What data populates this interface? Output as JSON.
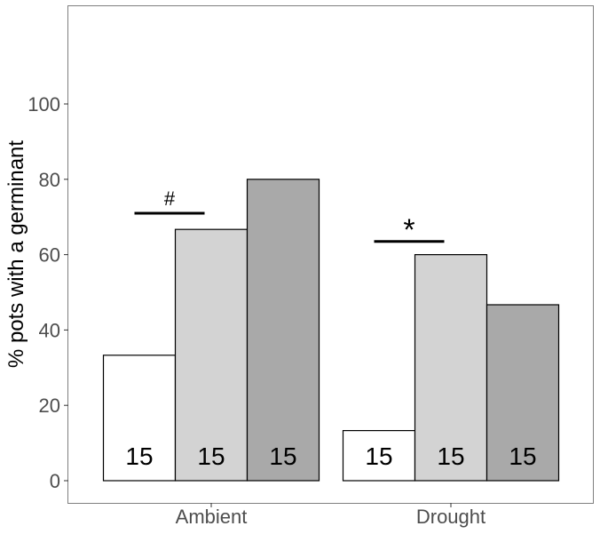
{
  "chart_data": {
    "type": "bar",
    "ylabel": "% pots with a germinant",
    "xlabel": "",
    "ylim": [
      -5,
      127
    ],
    "yticks": [
      0,
      20,
      40,
      60,
      80,
      100
    ],
    "categories": [
      "Ambient",
      "Drought"
    ],
    "series": [
      {
        "values": [
          33.3,
          13.3
        ],
        "n": [
          "15",
          "15"
        ],
        "color": "#ffffff"
      },
      {
        "values": [
          66.7,
          60.0
        ],
        "n": [
          "15",
          "15"
        ],
        "color": "#d3d3d3"
      },
      {
        "values": [
          80.0,
          46.7
        ],
        "n": [
          "15",
          "15"
        ],
        "color": "#a9a9a9"
      }
    ],
    "annotations": [
      {
        "category": "Ambient",
        "symbol": "#",
        "y": 71,
        "span": [
          0,
          1
        ]
      },
      {
        "category": "Drought",
        "symbol": "*",
        "y": 63.5,
        "span": [
          0,
          1
        ]
      }
    ],
    "grid": false,
    "legend": "none"
  }
}
